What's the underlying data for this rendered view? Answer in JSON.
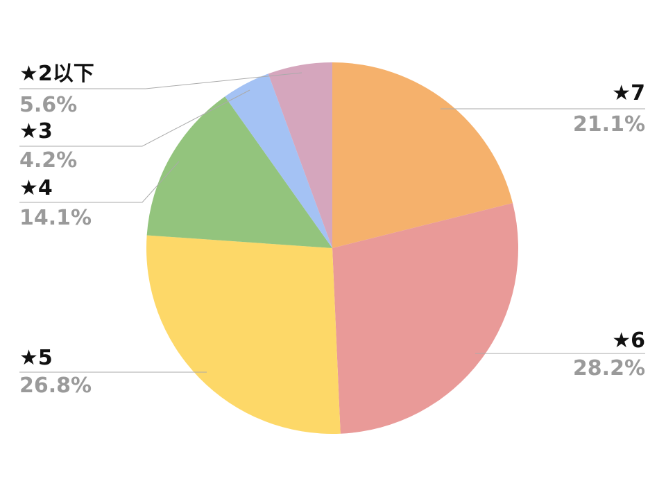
{
  "chart_data": {
    "type": "pie",
    "categories": [
      "★7",
      "★6",
      "★5",
      "★4",
      "★3",
      "★2以下"
    ],
    "values": [
      21.1,
      28.2,
      26.8,
      14.1,
      4.2,
      5.6
    ],
    "value_labels": [
      "21.1%",
      "28.2%",
      "26.8%",
      "14.1%",
      "4.2%",
      "5.6%"
    ],
    "colors": [
      "#f5b16c",
      "#e99a98",
      "#fdd868",
      "#93c47d",
      "#a4c2f4",
      "#d5a6bd"
    ]
  }
}
